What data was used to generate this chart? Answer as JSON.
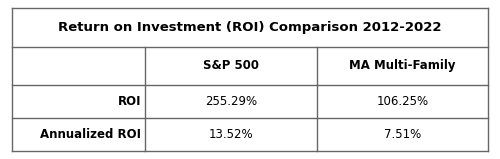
{
  "title": "Return on Investment (ROI) Comparison 2012-2022",
  "col_headers": [
    "",
    "S&P 500",
    "MA Multi-Family"
  ],
  "rows": [
    [
      "ROI",
      "255.29%",
      "106.25%"
    ],
    [
      "Annualized ROI",
      "13.52%",
      "7.51%"
    ]
  ],
  "bg_color": "#ffffff",
  "border_color": "#666666",
  "text_color": "#000000",
  "title_fontsize": 9.5,
  "header_fontsize": 8.5,
  "data_fontsize": 8.5,
  "fig_width": 5.0,
  "fig_height": 1.59,
  "dpi": 100
}
